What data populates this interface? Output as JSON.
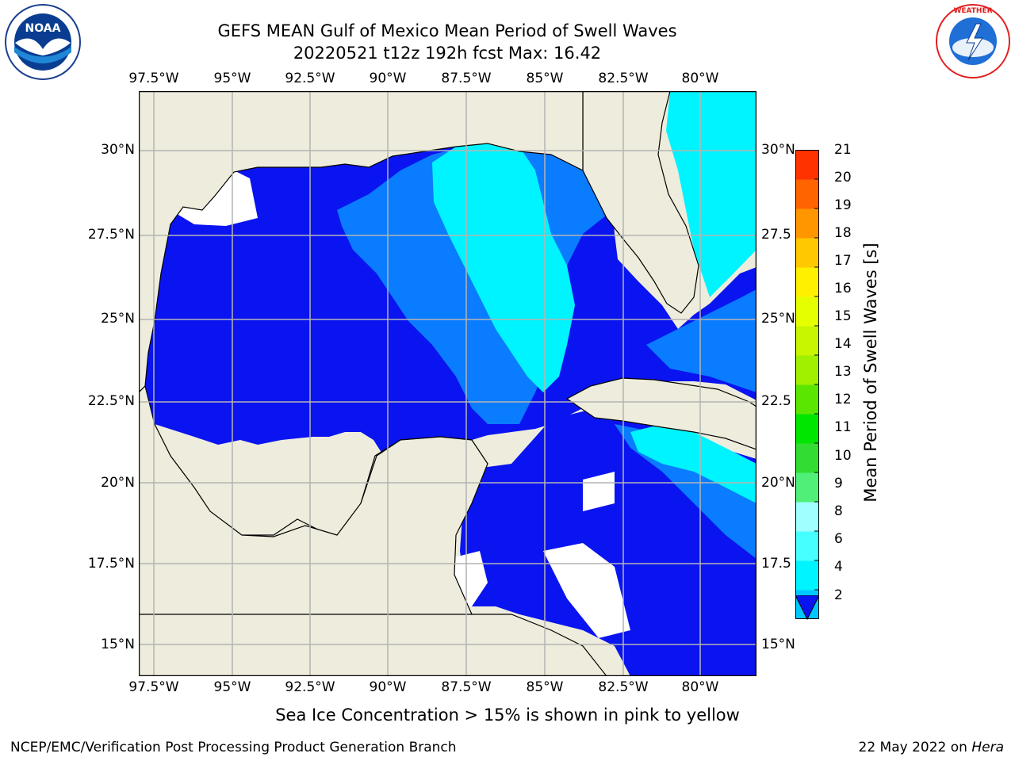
{
  "header": {
    "title_line1": "GEFS MEAN Gulf of Mexico Mean Period of Swell Waves",
    "title_line2": "20220521 t12z 192h fcst   Max: 16.42"
  },
  "logos": {
    "left": {
      "name": "NOAA",
      "ring_text": "NATIONAL OCEANIC AND ATMOSPHERIC ADMINISTRATION · U.S. DEPARTMENT OF COMMERCE"
    },
    "right": {
      "name": "NATIONAL WEATHER SERVICE"
    }
  },
  "map": {
    "lon_labels": [
      "97.5°W",
      "95°W",
      "92.5°W",
      "90°W",
      "87.5°W",
      "85°W",
      "82.5°W",
      "80°W"
    ],
    "lat_labels_left": [
      "30°N",
      "27.5°N",
      "25°N",
      "22.5°N",
      "20°N",
      "17.5°N",
      "15°N"
    ],
    "lat_labels_right": [
      "30°N",
      "27.5",
      "25°N",
      "22.5",
      "20°N",
      "17.5",
      "15°N"
    ],
    "colors": {
      "land": "#eeecdc",
      "grid": "#b4b4b4",
      "deep_blue": "#0a14f0",
      "mid_blue": "#0a7cff",
      "cyan": "#00f4ff",
      "sea_ice_yellow": "#d7ff00",
      "sea_ice_lime": "#b4ff00",
      "sea_ice_green": "#78f000"
    }
  },
  "colorbar": {
    "label": "Mean Period of Swell Waves [s]",
    "tick_labels": [
      "2",
      "4",
      "6",
      "8",
      "9",
      "10",
      "11",
      "12",
      "13",
      "14",
      "15",
      "16",
      "17",
      "18",
      "19",
      "20",
      "21"
    ],
    "colors": [
      "#0a7cff",
      "#00c8ff",
      "#00f4ff",
      "#46ffff",
      "#a0ffff",
      "#50f078",
      "#32dc32",
      "#00e600",
      "#5ae600",
      "#a0f000",
      "#c8f500",
      "#e6ff00",
      "#fff000",
      "#ffc800",
      "#ff9600",
      "#ff6400",
      "#ff3200",
      "#ff0000"
    ]
  },
  "footer": {
    "note": "Sea Ice Concentration > 15% is shown in pink to yellow",
    "left": "NCEP/EMC/Verification Post Processing Product Generation Branch",
    "right_prefix": "22 May 2022 on ",
    "right_host": "Hera"
  }
}
